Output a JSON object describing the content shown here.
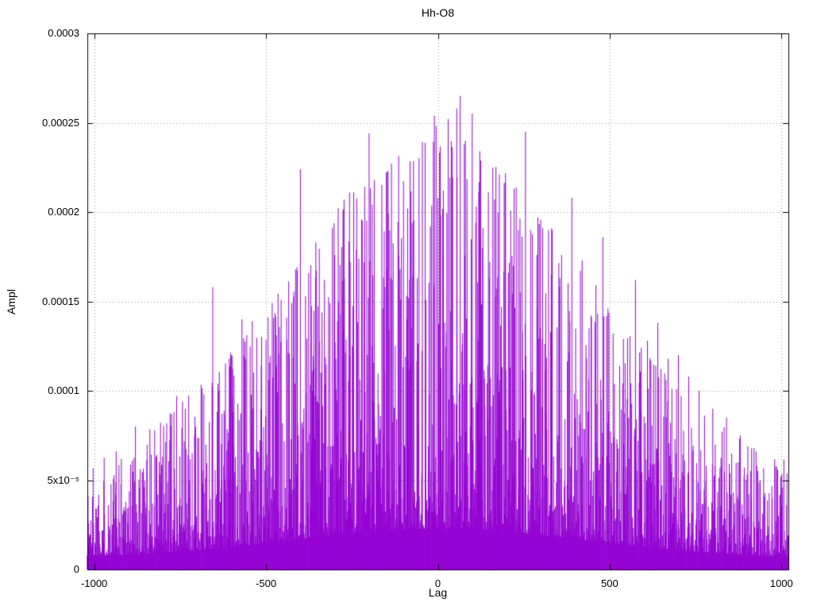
{
  "chart_data": {
    "type": "line",
    "style": "impulses",
    "title": "Hh-O8",
    "xlabel": "Lag",
    "ylabel": "Ampl",
    "xlim": [
      -1020,
      1020
    ],
    "ylim": [
      0,
      0.0003
    ],
    "x_ticks": [
      -1000,
      -500,
      0,
      500,
      1000
    ],
    "x_tick_labels": [
      "-1000",
      "-500",
      "0",
      "500",
      "1000"
    ],
    "y_ticks": [
      0,
      5e-05,
      0.0001,
      0.00015,
      0.0002,
      0.00025,
      0.0003
    ],
    "y_tick_labels": [
      "0",
      "5x10⁻⁵",
      "0.0001",
      "0.00015",
      "0.0002",
      "0.00025",
      "0.0003"
    ],
    "grid": true,
    "legend": "none",
    "line_color": "#9400d3",
    "n_points": 2041,
    "seed": 1337,
    "envelope": {
      "base": 5e-05,
      "amp": 0.00021,
      "sigma": 620,
      "floor": 2e-06,
      "q_min": 0.08,
      "q_pow": 2.6,
      "q_cap": 0.88,
      "q_cap_scale": 0.35
    },
    "peaks": [
      [
        -880,
        8e-05
      ],
      [
        -820,
        6.3e-05
      ],
      [
        -760,
        9.7e-05
      ],
      [
        -735,
        9e-05
      ],
      [
        -655,
        0.000158
      ],
      [
        -640,
        0.000104
      ],
      [
        -600,
        0.00012
      ],
      [
        -570,
        0.00014
      ],
      [
        -540,
        0.000139
      ],
      [
        -500,
        0.000125
      ],
      [
        -470,
        0.000131
      ],
      [
        -440,
        0.000141
      ],
      [
        -400,
        0.000224
      ],
      [
        -385,
        0.000153
      ],
      [
        -355,
        0.000183
      ],
      [
        -330,
        0.000162
      ],
      [
        -300,
        0.000176
      ],
      [
        -280,
        0.000165
      ],
      [
        -255,
        0.000172
      ],
      [
        -230,
        0.000174
      ],
      [
        -215,
        0.000172
      ],
      [
        -200,
        0.000244
      ],
      [
        -185,
        0.000218
      ],
      [
        -160,
        0.000146
      ],
      [
        -145,
        0.000223
      ],
      [
        -130,
        0.000175
      ],
      [
        -110,
        0.000168
      ],
      [
        -85,
        0.000152
      ],
      [
        -60,
        0.000163
      ],
      [
        -35,
        0.000151
      ],
      [
        -10,
        0.000254
      ],
      [
        -5,
        0.000248
      ],
      [
        15,
        0.000176
      ],
      [
        30,
        0.000252
      ],
      [
        55,
        0.000258
      ],
      [
        65,
        0.000265
      ],
      [
        80,
        0.00024
      ],
      [
        100,
        0.000255
      ],
      [
        110,
        0.000194
      ],
      [
        130,
        0.00018
      ],
      [
        150,
        0.000163
      ],
      [
        170,
        0.000157
      ],
      [
        185,
        0.000147
      ],
      [
        205,
        0.000166
      ],
      [
        220,
        0.00017
      ],
      [
        240,
        0.000155
      ],
      [
        255,
        0.000245
      ],
      [
        270,
        0.00019
      ],
      [
        290,
        0.000146
      ],
      [
        305,
        0.000191
      ],
      [
        330,
        0.000165
      ],
      [
        360,
        0.000176
      ],
      [
        390,
        0.000208
      ],
      [
        420,
        0.000173
      ],
      [
        440,
        0.000135
      ],
      [
        465,
        0.000143
      ],
      [
        480,
        0.000186
      ],
      [
        510,
        0.000132
      ],
      [
        540,
        0.000129
      ],
      [
        575,
        0.000162
      ],
      [
        610,
        0.000128
      ],
      [
        640,
        0.000138
      ],
      [
        670,
        0.000118
      ],
      [
        700,
        0.00012
      ],
      [
        730,
        0.000108
      ],
      [
        760,
        0.0001
      ],
      [
        800,
        9e-05
      ],
      [
        840,
        8.5e-05
      ],
      [
        880,
        7.5e-05
      ],
      [
        920,
        6.8e-05
      ]
    ]
  }
}
